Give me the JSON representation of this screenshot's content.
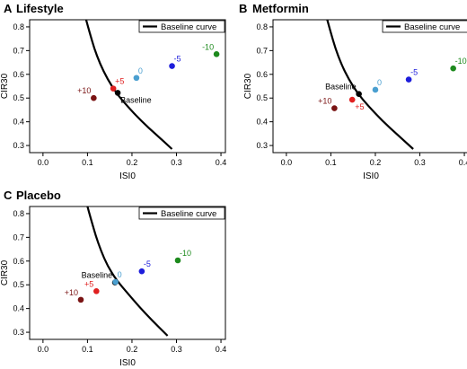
{
  "chart_data": [
    {
      "type": "scatter",
      "panel": "A",
      "title": "Lifestyle",
      "xlabel": "ISI0",
      "ylabel": "CIR30",
      "xlim": [
        -0.03,
        0.41
      ],
      "ylim": [
        0.27,
        0.83
      ],
      "x_ticks": [
        0.0,
        0.1,
        0.2,
        0.3,
        0.4
      ],
      "x_tick_labels": [
        "0.0",
        "0.1",
        "0.2",
        "0.3",
        "0.4"
      ],
      "y_ticks": [
        0.3,
        0.4,
        0.5,
        0.6,
        0.7,
        0.8
      ],
      "y_tick_labels": [
        "0.3",
        "0.4",
        "0.5",
        "0.6",
        "0.7",
        "0.8"
      ],
      "legend": {
        "label": "Baseline curve",
        "placement": "top-right"
      },
      "curve": {
        "name": "Baseline curve",
        "x": [
          0.097,
          0.105,
          0.115,
          0.128,
          0.145,
          0.165,
          0.19,
          0.22,
          0.255,
          0.29
        ],
        "y": [
          0.83,
          0.775,
          0.71,
          0.645,
          0.58,
          0.52,
          0.465,
          0.405,
          0.345,
          0.285
        ]
      },
      "points": [
        {
          "label": "Baseline",
          "x": 0.168,
          "y": 0.522,
          "color": "#000000",
          "label_pos": "below-right"
        },
        {
          "label": "0",
          "x": 0.21,
          "y": 0.585,
          "color": "#4a9fd0",
          "label_pos": "above-right"
        },
        {
          "label": "-5",
          "x": 0.29,
          "y": 0.635,
          "color": "#1d1ddb",
          "label_pos": "above-right"
        },
        {
          "label": "-10",
          "x": 0.39,
          "y": 0.685,
          "color": "#1d8a1d",
          "label_pos": "above-left"
        },
        {
          "label": "+5",
          "x": 0.158,
          "y": 0.54,
          "color": "#e02020",
          "label_pos": "above-right"
        },
        {
          "label": "+10",
          "x": 0.114,
          "y": 0.5,
          "color": "#7a1414",
          "label_pos": "above-left"
        }
      ]
    },
    {
      "type": "scatter",
      "panel": "B",
      "title": "Metformin",
      "xlabel": "ISI0",
      "ylabel": "CIR30",
      "xlim": [
        -0.03,
        0.41
      ],
      "ylim": [
        0.27,
        0.83
      ],
      "x_ticks": [
        0.0,
        0.1,
        0.2,
        0.3,
        0.4
      ],
      "x_tick_labels": [
        "0.0",
        "0.1",
        "0.2",
        "0.3",
        "0.4"
      ],
      "y_ticks": [
        0.3,
        0.4,
        0.5,
        0.6,
        0.7,
        0.8
      ],
      "y_tick_labels": [
        "0.3",
        "0.4",
        "0.5",
        "0.6",
        "0.7",
        "0.8"
      ],
      "legend": {
        "label": "Baseline curve",
        "placement": "top-right"
      },
      "curve": {
        "name": "Baseline curve",
        "x": [
          0.092,
          0.1,
          0.11,
          0.123,
          0.14,
          0.16,
          0.185,
          0.215,
          0.25,
          0.285
        ],
        "y": [
          0.83,
          0.775,
          0.71,
          0.645,
          0.58,
          0.52,
          0.465,
          0.405,
          0.345,
          0.285
        ]
      },
      "points": [
        {
          "label": "Baseline",
          "x": 0.163,
          "y": 0.517,
          "color": "#000000",
          "label_pos": "above-left"
        },
        {
          "label": "0",
          "x": 0.2,
          "y": 0.535,
          "color": "#4a9fd0",
          "label_pos": "above-right"
        },
        {
          "label": "-5",
          "x": 0.275,
          "y": 0.578,
          "color": "#1d1ddb",
          "label_pos": "above-right"
        },
        {
          "label": "-10",
          "x": 0.375,
          "y": 0.625,
          "color": "#1d8a1d",
          "label_pos": "above-right"
        },
        {
          "label": "+5",
          "x": 0.148,
          "y": 0.493,
          "color": "#e02020",
          "label_pos": "below-right"
        },
        {
          "label": "+10",
          "x": 0.108,
          "y": 0.457,
          "color": "#7a1414",
          "label_pos": "above-left"
        }
      ]
    },
    {
      "type": "scatter",
      "panel": "C",
      "title": "Placebo",
      "xlabel": "ISI0",
      "ylabel": "CIR30",
      "xlim": [
        -0.03,
        0.41
      ],
      "ylim": [
        0.27,
        0.83
      ],
      "x_ticks": [
        0.0,
        0.1,
        0.2,
        0.3,
        0.4
      ],
      "x_tick_labels": [
        "0.0",
        "0.1",
        "0.2",
        "0.3",
        "0.4"
      ],
      "y_ticks": [
        0.3,
        0.4,
        0.5,
        0.6,
        0.7,
        0.8
      ],
      "y_tick_labels": [
        "0.3",
        "0.4",
        "0.5",
        "0.6",
        "0.7",
        "0.8"
      ],
      "legend": {
        "label": "Baseline curve",
        "placement": "top-right"
      },
      "curve": {
        "name": "Baseline curve",
        "x": [
          0.1,
          0.108,
          0.118,
          0.13,
          0.145,
          0.165,
          0.19,
          0.215,
          0.245,
          0.28
        ],
        "y": [
          0.83,
          0.775,
          0.71,
          0.645,
          0.58,
          0.52,
          0.465,
          0.41,
          0.35,
          0.285
        ]
      },
      "points": [
        {
          "label": "Baseline",
          "x": 0.162,
          "y": 0.51,
          "color": "#000000",
          "label_pos": "above-left"
        },
        {
          "label": "0",
          "x": 0.163,
          "y": 0.512,
          "color": "#4a9fd0",
          "label_pos": "above-right"
        },
        {
          "label": "-5",
          "x": 0.222,
          "y": 0.557,
          "color": "#1d1ddb",
          "label_pos": "above-right"
        },
        {
          "label": "-10",
          "x": 0.303,
          "y": 0.603,
          "color": "#1d8a1d",
          "label_pos": "above-right"
        },
        {
          "label": "+5",
          "x": 0.12,
          "y": 0.473,
          "color": "#e02020",
          "label_pos": "above-left"
        },
        {
          "label": "+10",
          "x": 0.085,
          "y": 0.437,
          "color": "#7a1414",
          "label_pos": "above-left"
        }
      ]
    }
  ]
}
